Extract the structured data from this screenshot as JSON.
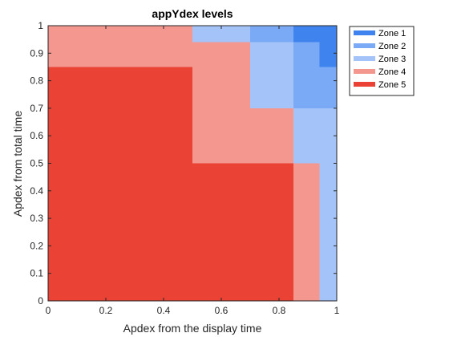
{
  "chart_data": {
    "type": "heatmap",
    "title": "appYdex levels",
    "xlabel": "Apdex from the display time",
    "ylabel": "Apdex from total time",
    "xlim": [
      0,
      1
    ],
    "ylim": [
      0,
      1
    ],
    "xticks": [
      "0",
      "0.2",
      "0.4",
      "0.6",
      "0.8",
      "1"
    ],
    "yticks": [
      "0",
      "0.1",
      "0.2",
      "0.3",
      "0.4",
      "0.5",
      "0.6",
      "0.7",
      "0.8",
      "0.9",
      "1"
    ],
    "grid": false,
    "legend_position": "top-right, outside plot",
    "zones": [
      {
        "name": "Zone 1",
        "color": "#3f84ee"
      },
      {
        "name": "Zone 2",
        "color": "#7aa9f5"
      },
      {
        "name": "Zone 3",
        "color": "#a3c3f9"
      },
      {
        "name": "Zone 4",
        "color": "#f4978e"
      },
      {
        "name": "Zone 5",
        "color": "#ea4335"
      }
    ],
    "regions": [
      {
        "zone": "Zone 5",
        "x": [
          0,
          0.5
        ],
        "y": [
          0,
          0.85
        ]
      },
      {
        "zone": "Zone 5",
        "x": [
          0.5,
          0.85
        ],
        "y": [
          0,
          0.5
        ]
      },
      {
        "zone": "Zone 4",
        "x": [
          0,
          0.5
        ],
        "y": [
          0.85,
          1
        ]
      },
      {
        "zone": "Zone 4",
        "x": [
          0.5,
          0.7
        ],
        "y": [
          0.5,
          0.94
        ]
      },
      {
        "zone": "Zone 4",
        "x": [
          0.7,
          0.85
        ],
        "y": [
          0.5,
          0.7
        ]
      },
      {
        "zone": "Zone 4",
        "x": [
          0.85,
          0.94
        ],
        "y": [
          0,
          0.5
        ]
      },
      {
        "zone": "Zone 3",
        "x": [
          0.5,
          0.7
        ],
        "y": [
          0.94,
          1
        ]
      },
      {
        "zone": "Zone 3",
        "x": [
          0.7,
          0.85
        ],
        "y": [
          0.7,
          0.94
        ]
      },
      {
        "zone": "Zone 3",
        "x": [
          0.85,
          1
        ],
        "y": [
          0.5,
          0.7
        ]
      },
      {
        "zone": "Zone 3",
        "x": [
          0.94,
          1
        ],
        "y": [
          0,
          0.5
        ]
      },
      {
        "zone": "Zone 2",
        "x": [
          0.7,
          0.85
        ],
        "y": [
          0.94,
          1
        ]
      },
      {
        "zone": "Zone 2",
        "x": [
          0.85,
          0.94
        ],
        "y": [
          0.7,
          0.94
        ]
      },
      {
        "zone": "Zone 2",
        "x": [
          0.94,
          1
        ],
        "y": [
          0.7,
          0.85
        ]
      },
      {
        "zone": "Zone 1",
        "x": [
          0.85,
          0.94
        ],
        "y": [
          0.94,
          1
        ]
      },
      {
        "zone": "Zone 1",
        "x": [
          0.94,
          1
        ],
        "y": [
          0.85,
          1
        ]
      }
    ]
  }
}
